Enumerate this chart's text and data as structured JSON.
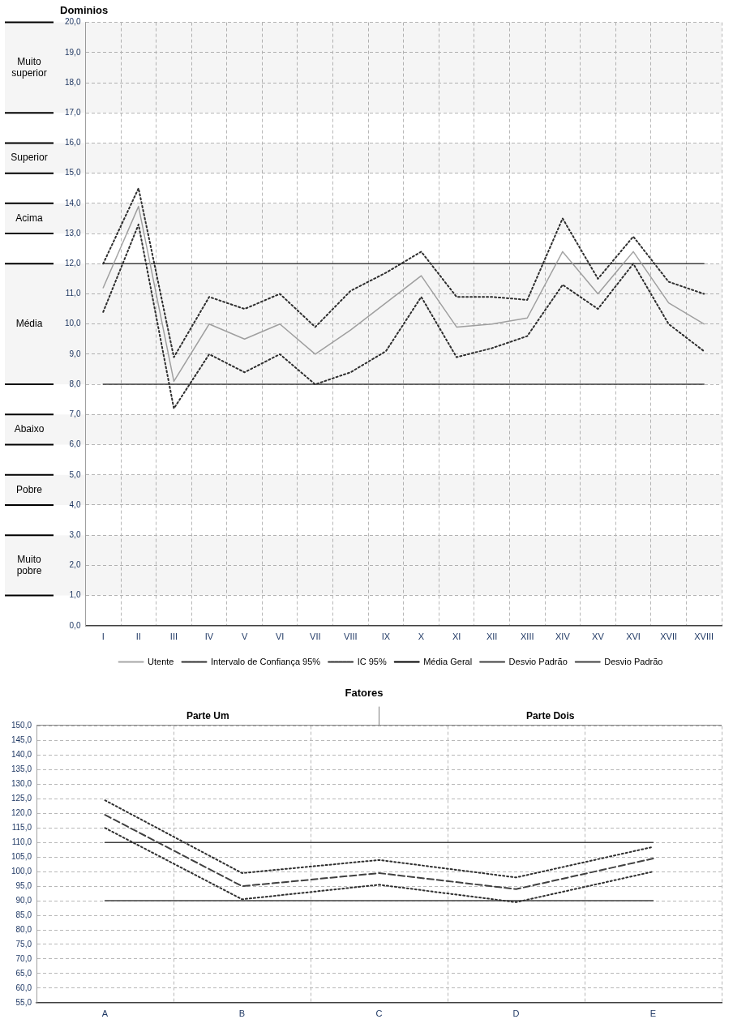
{
  "chart_data": [
    {
      "type": "line",
      "title": "Dominios",
      "categories": [
        "I",
        "II",
        "III",
        "IV",
        "V",
        "VI",
        "VII",
        "VIII",
        "IX",
        "X",
        "XI",
        "XII",
        "XIII",
        "XIV",
        "XV",
        "XVI",
        "XVII",
        "XVIII"
      ],
      "series": [
        {
          "name": "Utente",
          "color": "#a6a6a6",
          "line_style": "solid",
          "values": [
            11.2,
            13.9,
            8.1,
            10.0,
            9.5,
            10.0,
            9.0,
            9.8,
            10.7,
            11.6,
            9.9,
            10.0,
            10.2,
            12.4,
            11.0,
            12.4,
            10.7,
            10.0
          ]
        },
        {
          "name": "Intervalo de Confiança 95%",
          "color": "#303030",
          "line_style": "dotted",
          "values": [
            12.0,
            14.5,
            8.9,
            10.9,
            10.5,
            11.0,
            9.9,
            11.1,
            11.7,
            12.4,
            10.9,
            10.9,
            10.8,
            13.5,
            11.5,
            12.9,
            11.4,
            11.0
          ]
        },
        {
          "name": "IC 95%",
          "color": "#303030",
          "line_style": "dotted",
          "values": [
            10.4,
            13.3,
            7.2,
            9.0,
            8.4,
            9.0,
            8.0,
            8.4,
            9.1,
            10.9,
            8.9,
            9.2,
            9.6,
            11.3,
            10.5,
            12.0,
            10.0,
            9.1
          ]
        },
        {
          "name": "Média Geral",
          "color": "#000000",
          "line_style": "solid",
          "values": [
            null,
            null,
            null,
            null,
            null,
            null,
            null,
            null,
            null,
            null,
            null,
            null,
            null,
            null,
            null,
            null,
            null,
            null
          ]
        },
        {
          "name": "Desvio Padrão",
          "color": "#404040",
          "line_style": "solid",
          "values": [
            12,
            12,
            12,
            12,
            12,
            12,
            12,
            12,
            12,
            12,
            12,
            12,
            12,
            12,
            12,
            12,
            12,
            12
          ]
        },
        {
          "name": "Desvio Padrão",
          "color": "#404040",
          "line_style": "solid",
          "values": [
            8,
            8,
            8,
            8,
            8,
            8,
            8,
            8,
            8,
            8,
            8,
            8,
            8,
            8,
            8,
            8,
            8,
            8
          ]
        }
      ],
      "ylim": [
        0,
        20
      ],
      "yticks": [
        {
          "value": 0,
          "label": "0,0"
        },
        {
          "value": 1,
          "label": "1,0"
        },
        {
          "value": 2,
          "label": "2,0"
        },
        {
          "value": 3,
          "label": "3,0"
        },
        {
          "value": 4,
          "label": "4,0"
        },
        {
          "value": 5,
          "label": "5,0"
        },
        {
          "value": 6,
          "label": "6,0"
        },
        {
          "value": 7,
          "label": "7,0"
        },
        {
          "value": 8,
          "label": "8,0"
        },
        {
          "value": 9,
          "label": "9,0"
        },
        {
          "value": 10,
          "label": "10,0"
        },
        {
          "value": 11,
          "label": "11,0"
        },
        {
          "value": 12,
          "label": "12,0"
        },
        {
          "value": 13,
          "label": "13,0"
        },
        {
          "value": 14,
          "label": "14,0"
        },
        {
          "value": 15,
          "label": "15,0"
        },
        {
          "value": 16,
          "label": "16,0"
        },
        {
          "value": 17,
          "label": "17,0"
        },
        {
          "value": 18,
          "label": "18,0"
        },
        {
          "value": 19,
          "label": "19,0"
        },
        {
          "value": 20,
          "label": "20,0"
        }
      ],
      "bands": [
        {
          "axis": "y",
          "from": 17,
          "to": 20,
          "label": "Muito superior",
          "color": "#000000"
        },
        {
          "axis": "y",
          "from": 15,
          "to": 16,
          "label": "Superior",
          "color": "#000000"
        },
        {
          "axis": "y",
          "from": 13,
          "to": 14,
          "label": "Acima",
          "color": "#000000"
        },
        {
          "axis": "y",
          "from": 8,
          "to": 12,
          "label": "Média",
          "color": "#000000"
        },
        {
          "axis": "y",
          "from": 6,
          "to": 7,
          "label": "Abaixo",
          "color": "#000000"
        },
        {
          "axis": "y",
          "from": 4,
          "to": 5,
          "label": "Pobre",
          "color": "#000000"
        },
        {
          "axis": "y",
          "from": 1,
          "to": 3,
          "label": "Muito pobre",
          "color": "#000000"
        }
      ],
      "grid": true,
      "marker": "none",
      "legend": "bottom"
    },
    {
      "type": "line",
      "title": "Fatores",
      "categories": [
        "A",
        "B",
        "C",
        "D",
        "E"
      ],
      "series": [
        {
          "color": "#404040",
          "line_style": "dashed",
          "values": [
            119.5,
            95.0,
            99.5,
            94.0,
            104.5
          ]
        },
        {
          "color": "#303030",
          "line_style": "dotted",
          "values": [
            124.5,
            99.5,
            104.0,
            98.0,
            108.5
          ]
        },
        {
          "color": "#303030",
          "line_style": "dotted",
          "values": [
            115.0,
            90.5,
            95.5,
            89.5,
            100.0
          ]
        },
        {
          "color": "#404040",
          "line_style": "solid",
          "values": [
            110,
            110,
            110,
            110,
            110
          ]
        },
        {
          "color": "#404040",
          "line_style": "solid",
          "values": [
            90,
            90,
            90,
            90,
            90
          ]
        }
      ],
      "ylim": [
        55,
        150
      ],
      "yticks": [
        {
          "value": 55,
          "label": "55,0"
        },
        {
          "value": 60,
          "label": "60,0"
        },
        {
          "value": 65,
          "label": "65,0"
        },
        {
          "value": 70,
          "label": "70,0"
        },
        {
          "value": 75,
          "label": "75,0"
        },
        {
          "value": 80,
          "label": "80,0"
        },
        {
          "value": 85,
          "label": "85,0"
        },
        {
          "value": 90,
          "label": "90,0"
        },
        {
          "value": 95,
          "label": "95,0"
        },
        {
          "value": 100,
          "label": "100,0"
        },
        {
          "value": 105,
          "label": "105,0"
        },
        {
          "value": 110,
          "label": "110,0"
        },
        {
          "value": 115,
          "label": "115,0"
        },
        {
          "value": 120,
          "label": "120,0"
        },
        {
          "value": 125,
          "label": "125,0"
        },
        {
          "value": 130,
          "label": "130,0"
        },
        {
          "value": 135,
          "label": "135,0"
        },
        {
          "value": 140,
          "label": "140,0"
        },
        {
          "value": 145,
          "label": "145,0"
        },
        {
          "value": 150,
          "label": "150,0"
        }
      ],
      "annotations": [
        "Parte Um",
        "Parte Dois"
      ],
      "grid": true,
      "marker": "none",
      "legend": false
    }
  ]
}
